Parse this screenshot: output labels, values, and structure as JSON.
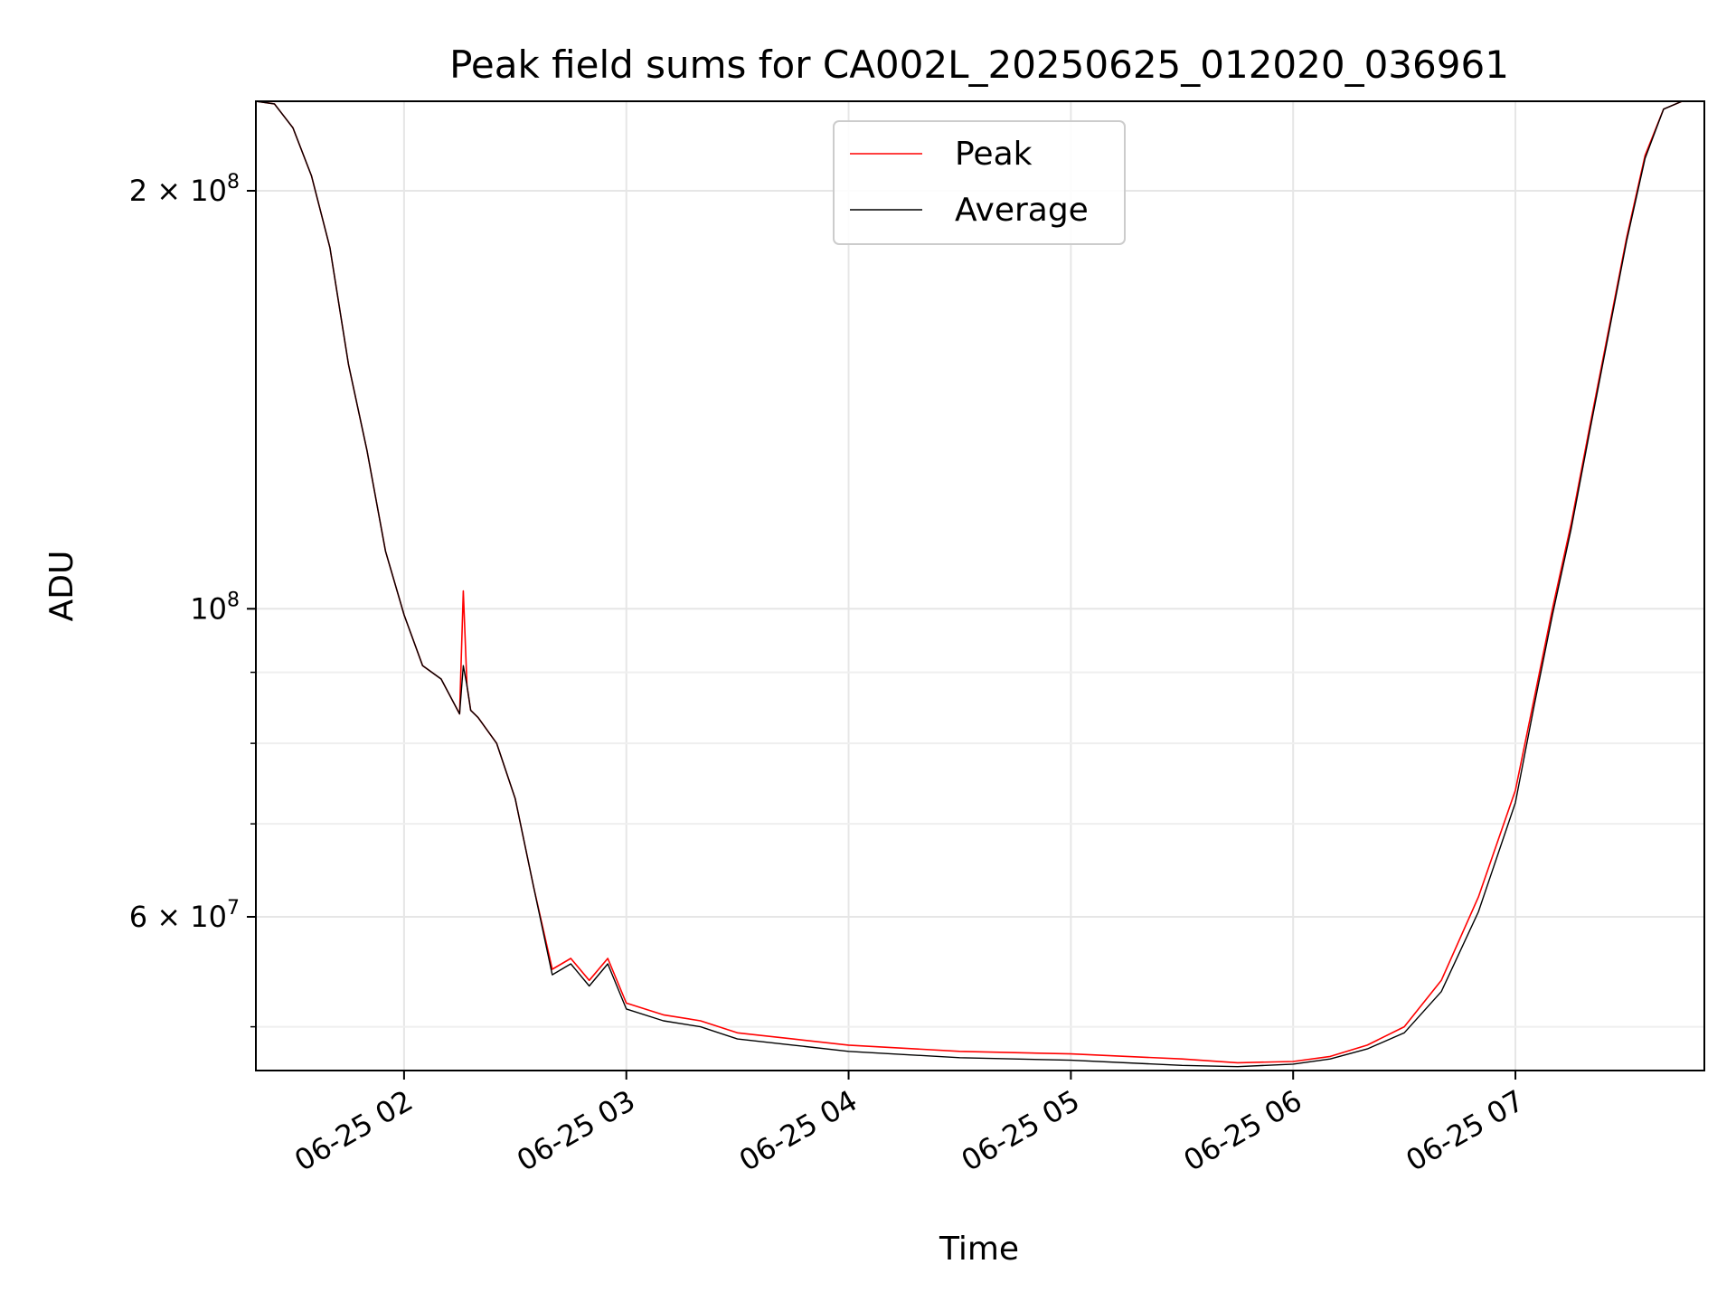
{
  "chart_data": {
    "type": "line",
    "title": "Peak field sums for CA002L_20250625_012020_036961",
    "xlabel": "Time",
    "ylabel": "ADU",
    "yscale": "log",
    "xlim": [
      "2025-06-25 01:20",
      "2025-06-25 07:51"
    ],
    "ylim": [
      46500000,
      232000000
    ],
    "x_ticks": [
      "06-25 02",
      "06-25 03",
      "06-25 04",
      "06-25 05",
      "06-25 06",
      "06-25 07"
    ],
    "y_tick_labels": [
      "2 × 10^8",
      "10^8",
      "6 × 10^7"
    ],
    "y_major_ticks": [
      200000000,
      100000000,
      60000000
    ],
    "y_minor_ticks": [
      90000000,
      80000000,
      70000000,
      50000000
    ],
    "grid": true,
    "legend_position": "top-center",
    "series": [
      {
        "name": "Peak",
        "color": "#ff0000",
        "x": [
          "2025-06-25 01:20",
          "2025-06-25 01:25",
          "2025-06-25 01:30",
          "2025-06-25 01:35",
          "2025-06-25 01:40",
          "2025-06-25 01:45",
          "2025-06-25 01:50",
          "2025-06-25 01:55",
          "2025-06-25 02:00",
          "2025-06-25 02:05",
          "2025-06-25 02:10",
          "2025-06-25 02:15",
          "2025-06-25 02:16",
          "2025-06-25 02:17",
          "2025-06-25 02:18",
          "2025-06-25 02:20",
          "2025-06-25 02:25",
          "2025-06-25 02:30",
          "2025-06-25 02:35",
          "2025-06-25 02:40",
          "2025-06-25 02:45",
          "2025-06-25 02:50",
          "2025-06-25 02:55",
          "2025-06-25 03:00",
          "2025-06-25 03:10",
          "2025-06-25 03:20",
          "2025-06-25 03:30",
          "2025-06-25 03:45",
          "2025-06-25 04:00",
          "2025-06-25 04:30",
          "2025-06-25 05:00",
          "2025-06-25 05:30",
          "2025-06-25 05:45",
          "2025-06-25 06:00",
          "2025-06-25 06:10",
          "2025-06-25 06:20",
          "2025-06-25 06:30",
          "2025-06-25 06:40",
          "2025-06-25 06:50",
          "2025-06-25 07:00",
          "2025-06-25 07:05",
          "2025-06-25 07:10",
          "2025-06-25 07:15",
          "2025-06-25 07:20",
          "2025-06-25 07:25",
          "2025-06-25 07:30",
          "2025-06-25 07:35",
          "2025-06-25 07:40",
          "2025-06-25 07:45",
          "2025-06-25 07:51"
        ],
        "y": [
          232000000,
          231000000,
          222000000,
          205000000,
          182000000,
          150000000,
          130000000,
          110000000,
          99000000,
          91000000,
          89000000,
          84000000,
          103000000,
          88000000,
          84500000,
          83500000,
          80000000,
          73000000,
          63000000,
          55000000,
          56000000,
          54000000,
          56000000,
          52000000,
          51000000,
          50500000,
          49500000,
          49000000,
          48500000,
          48000000,
          47800000,
          47400000,
          47100000,
          47200000,
          47600000,
          48500000,
          50000000,
          54000000,
          62000000,
          74000000,
          86000000,
          100000000,
          115000000,
          135000000,
          158000000,
          185000000,
          212000000,
          229000000,
          232000000,
          232000000
        ]
      },
      {
        "name": "Average",
        "color": "#000000",
        "x": [
          "2025-06-25 01:20",
          "2025-06-25 01:25",
          "2025-06-25 01:30",
          "2025-06-25 01:35",
          "2025-06-25 01:40",
          "2025-06-25 01:45",
          "2025-06-25 01:50",
          "2025-06-25 01:55",
          "2025-06-25 02:00",
          "2025-06-25 02:05",
          "2025-06-25 02:10",
          "2025-06-25 02:15",
          "2025-06-25 02:16",
          "2025-06-25 02:17",
          "2025-06-25 02:18",
          "2025-06-25 02:20",
          "2025-06-25 02:25",
          "2025-06-25 02:30",
          "2025-06-25 02:35",
          "2025-06-25 02:40",
          "2025-06-25 02:45",
          "2025-06-25 02:50",
          "2025-06-25 02:55",
          "2025-06-25 03:00",
          "2025-06-25 03:10",
          "2025-06-25 03:20",
          "2025-06-25 03:30",
          "2025-06-25 03:45",
          "2025-06-25 04:00",
          "2025-06-25 04:30",
          "2025-06-25 05:00",
          "2025-06-25 05:30",
          "2025-06-25 05:45",
          "2025-06-25 06:00",
          "2025-06-25 06:10",
          "2025-06-25 06:20",
          "2025-06-25 06:30",
          "2025-06-25 06:40",
          "2025-06-25 06:50",
          "2025-06-25 07:00",
          "2025-06-25 07:05",
          "2025-06-25 07:10",
          "2025-06-25 07:15",
          "2025-06-25 07:20",
          "2025-06-25 07:25",
          "2025-06-25 07:30",
          "2025-06-25 07:35",
          "2025-06-25 07:40",
          "2025-06-25 07:45",
          "2025-06-25 07:51"
        ],
        "y": [
          232000000,
          231000000,
          222000000,
          205000000,
          182000000,
          150000000,
          130000000,
          110000000,
          99000000,
          91000000,
          89000000,
          84000000,
          91000000,
          88000000,
          84500000,
          83500000,
          80000000,
          73000000,
          63000000,
          54500000,
          55500000,
          53500000,
          55500000,
          51500000,
          50500000,
          50000000,
          49000000,
          48500000,
          48000000,
          47500000,
          47300000,
          46900000,
          46800000,
          47000000,
          47400000,
          48200000,
          49500000,
          53000000,
          60500000,
          72500000,
          85000000,
          99000000,
          114000000,
          134000000,
          157000000,
          184000000,
          211000000,
          229000000,
          232000000,
          232000000
        ]
      }
    ]
  }
}
